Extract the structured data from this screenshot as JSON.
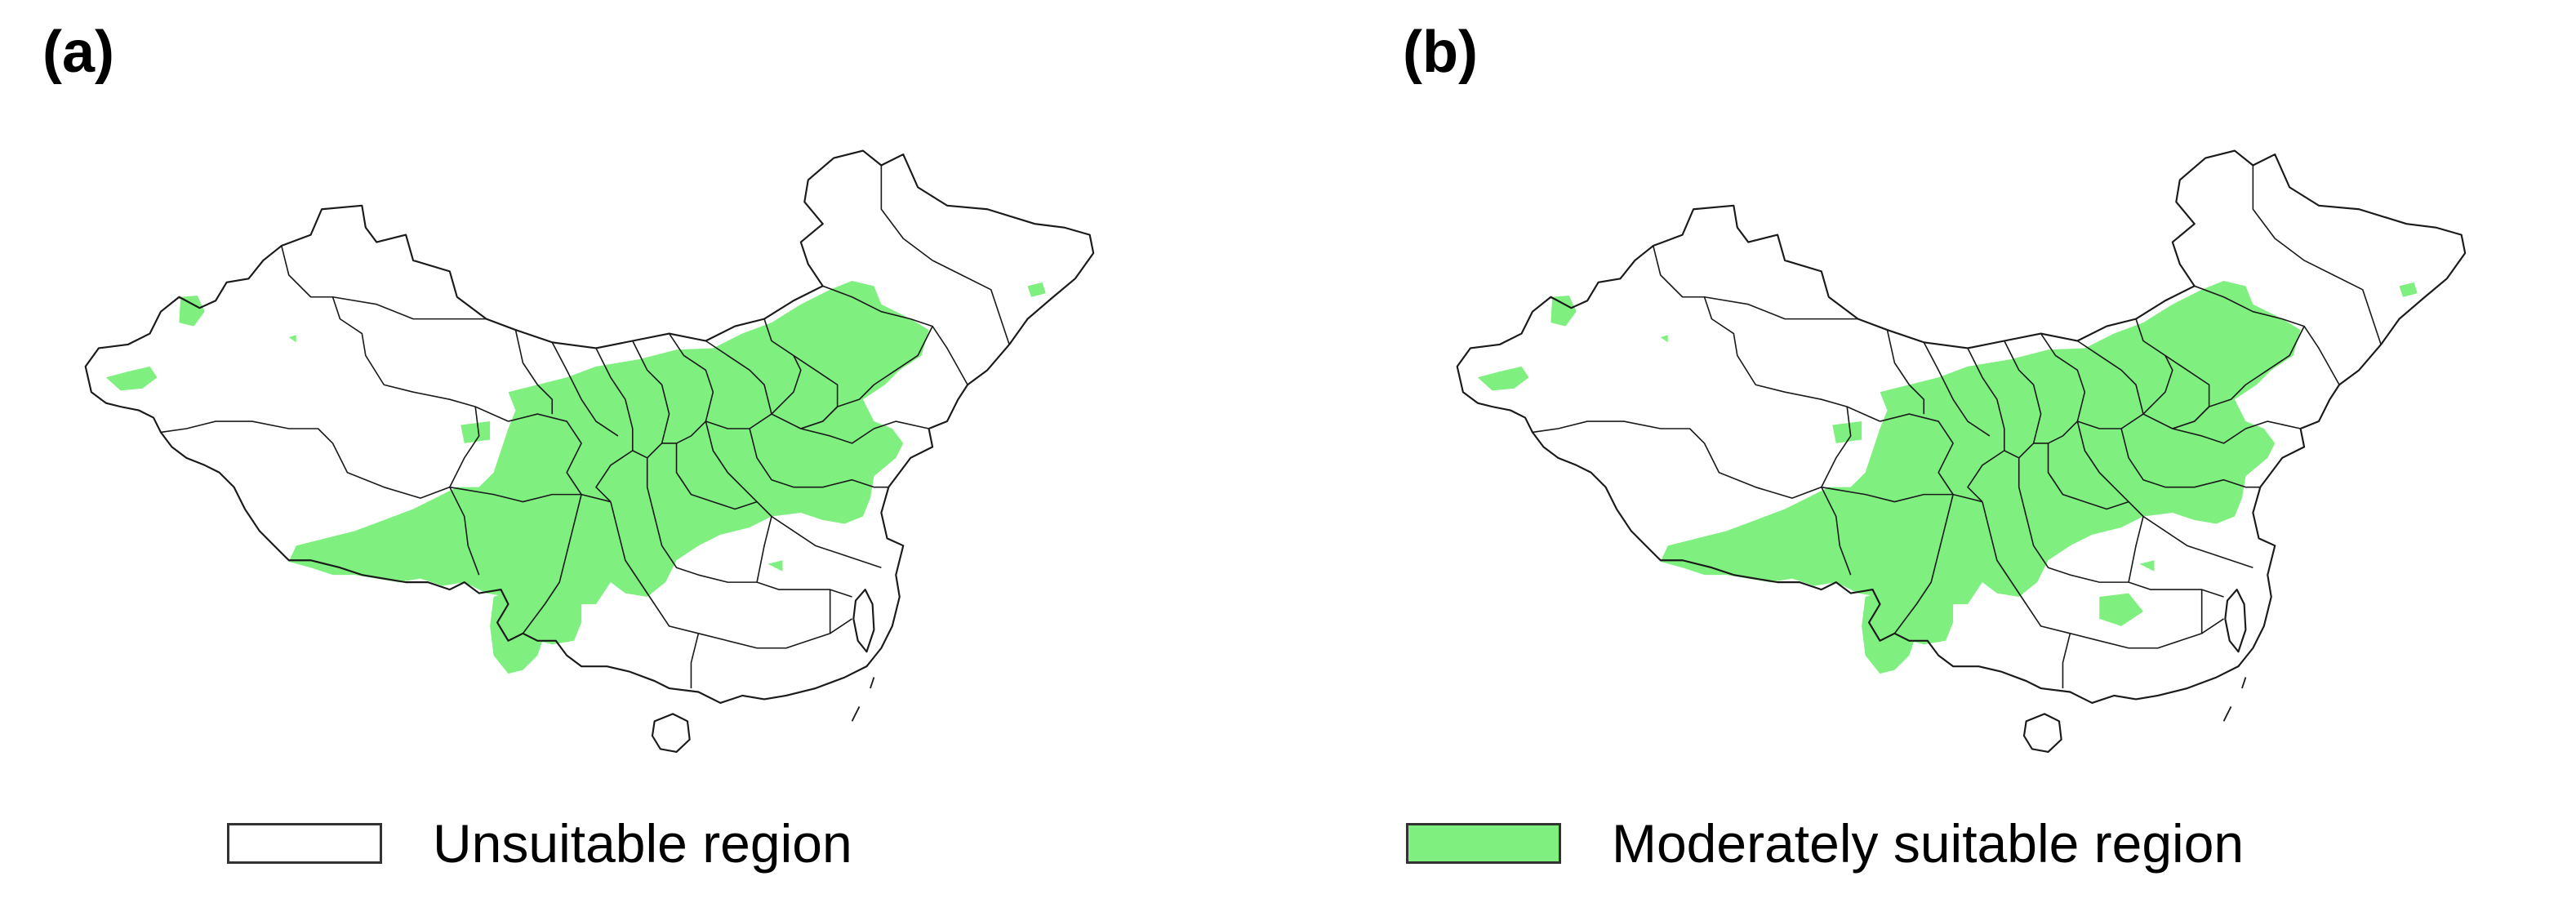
{
  "panels": [
    {
      "label": "(a)"
    },
    {
      "label": "(b)"
    }
  ],
  "legend": {
    "unsuitable": {
      "label": "Unsuitable region",
      "color": "#ffffff"
    },
    "moderate": {
      "label": "Moderately suitable region",
      "color": "#7ff07f"
    }
  },
  "colors": {
    "suitable_fill": "#7ff07f",
    "boundary": "#1a1a1a",
    "background": "#ffffff"
  }
}
